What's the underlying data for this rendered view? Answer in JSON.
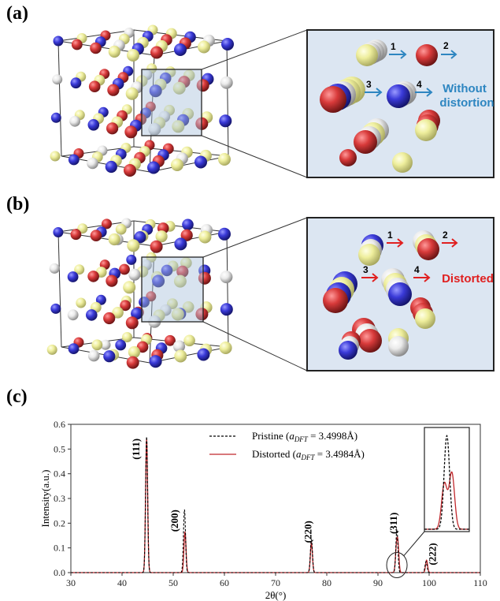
{
  "panels": {
    "a": {
      "label": "(a)",
      "arrow_numbers": [
        "1",
        "2",
        "3",
        "4"
      ],
      "caption_lines": [
        "Without",
        "distortion"
      ],
      "caption_color": "#2e86c1"
    },
    "b": {
      "label": "(b)",
      "arrow_numbers": [
        "1",
        "2",
        "3",
        "4"
      ],
      "caption_lines": [
        "Distorted"
      ],
      "caption_color": "#e02020"
    },
    "c": {
      "label": "(c)"
    }
  },
  "atom_colors": {
    "blue": "#3a3ad8",
    "red": "#d83a3a",
    "yellow": "#eeee9c",
    "white": "#eaeaea"
  },
  "chart_data": {
    "type": "line",
    "xlabel": "2θ(°)",
    "ylabel": "Intensity(a.u.)",
    "xlim": [
      30,
      110
    ],
    "ylim": [
      0,
      0.6
    ],
    "xticks": [
      30,
      40,
      50,
      60,
      70,
      80,
      90,
      100,
      110
    ],
    "yticks": [
      0.0,
      0.1,
      0.2,
      0.3,
      0.4,
      0.5,
      0.6
    ],
    "grid": false,
    "legend_position": "top-right",
    "series": [
      {
        "name": "Pristine (a_DFT = 3.4998Å)",
        "legend_prefix": "Pristine (",
        "legend_sub_a": "a",
        "legend_sub": "DFT",
        "legend_suffix": " = 3.4998Å)",
        "color": "#000000",
        "style": "dashed",
        "peaks": [
          {
            "x": 44.8,
            "y": 0.55
          },
          {
            "x": 52.2,
            "y": 0.255
          },
          {
            "x": 77.0,
            "y": 0.135
          },
          {
            "x": 93.7,
            "y": 0.175
          },
          {
            "x": 99.4,
            "y": 0.045
          }
        ]
      },
      {
        "name": "Distorted (a_DFT = 3.4984Å)",
        "legend_prefix": "Distorted (",
        "legend_sub_a": "a",
        "legend_sub": "DFT",
        "legend_suffix": " = 3.4984Å)",
        "color": "#c0282c",
        "style": "solid",
        "peaks": [
          {
            "x": 44.8,
            "y": 0.54
          },
          {
            "x": 52.3,
            "y": 0.165
          },
          {
            "x": 77.0,
            "y": 0.12
          },
          {
            "x": 93.6,
            "y": 0.085
          },
          {
            "x": 93.9,
            "y": 0.105
          },
          {
            "x": 99.5,
            "y": 0.05
          }
        ]
      }
    ],
    "annotations": [
      {
        "text": "(111)",
        "x": 43.4,
        "y": 0.5
      },
      {
        "text": "(200)",
        "x": 50.9,
        "y": 0.21
      },
      {
        "text": "(220)",
        "x": 77.0,
        "y": 0.165
      },
      {
        "text": "(311)",
        "x": 93.7,
        "y": 0.2
      },
      {
        "text": "(222)",
        "x": 101.3,
        "y": 0.075
      }
    ]
  }
}
